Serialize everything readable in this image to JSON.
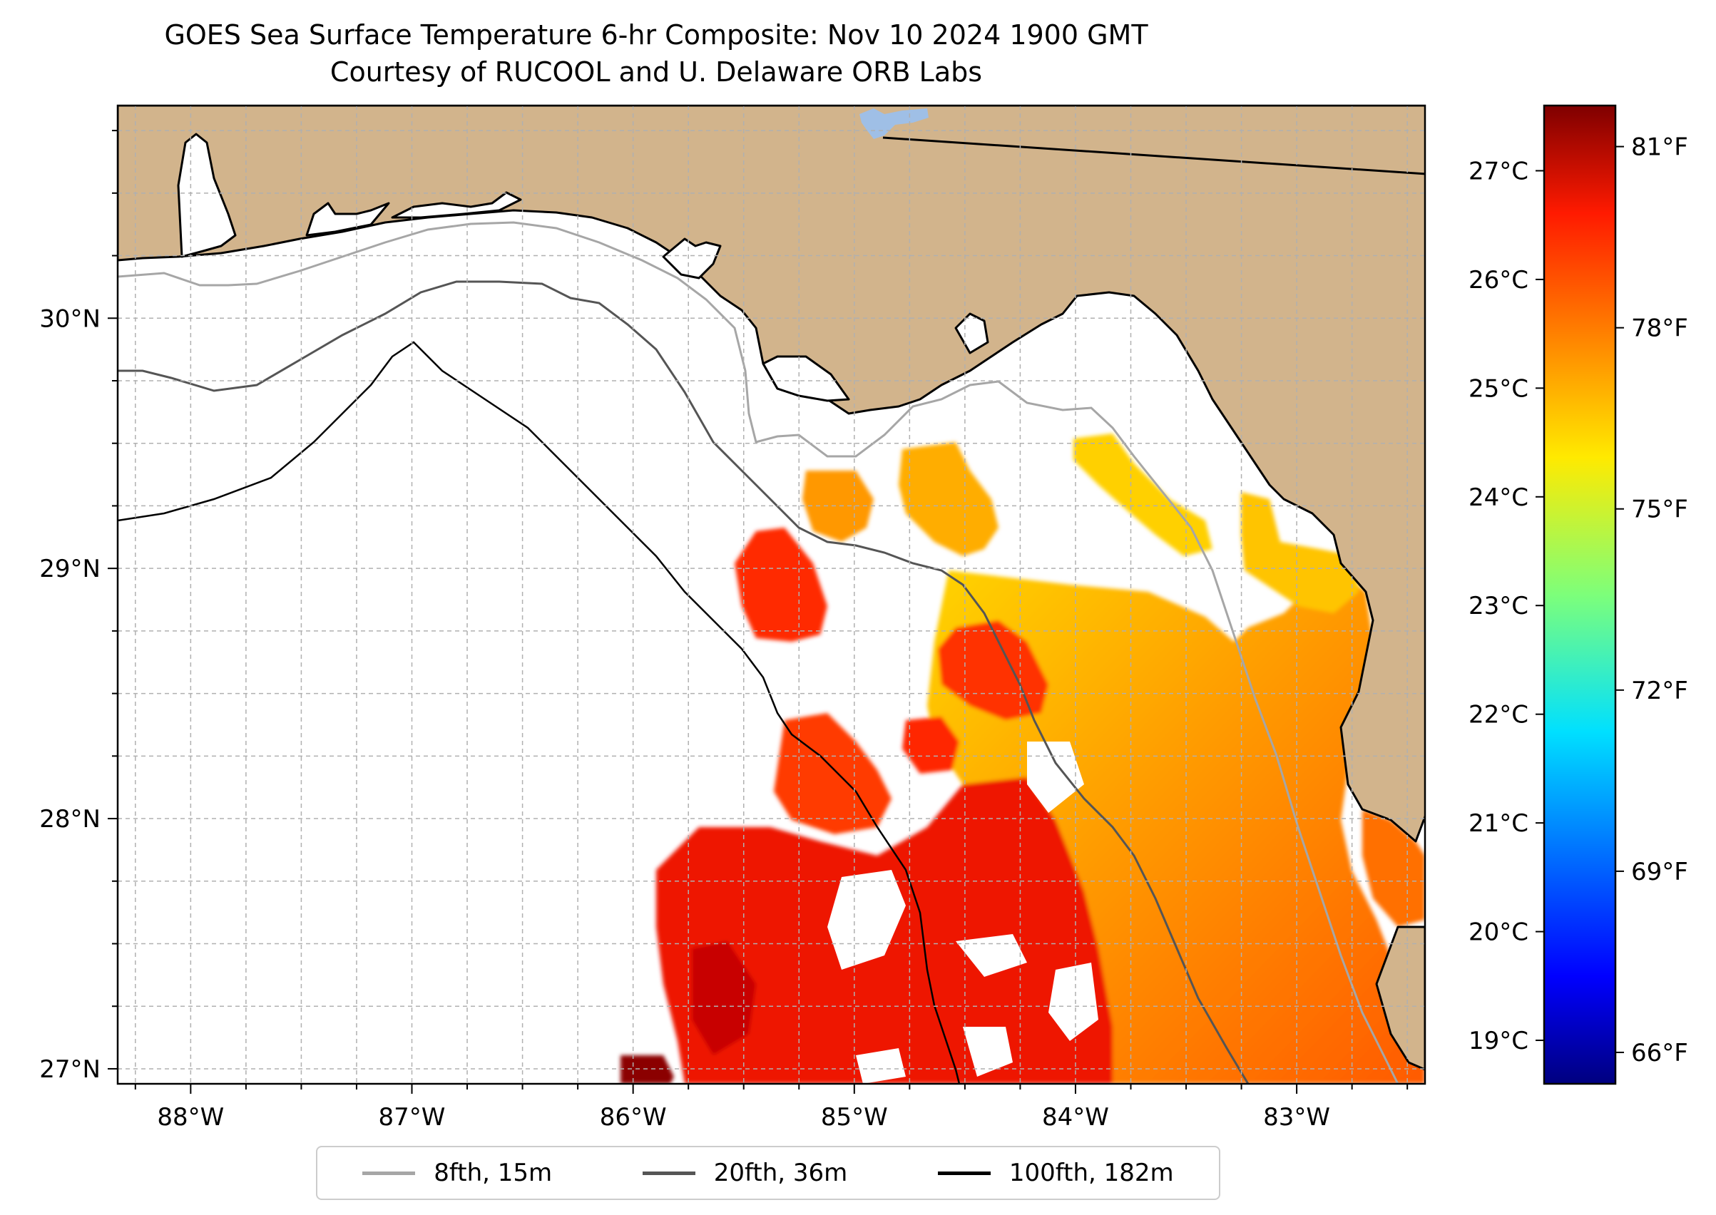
{
  "title": "GOES Sea Surface Temperature 6-hr Composite: Nov 10 2024 1900 GMT",
  "subtitle": "Courtesy of RUCOOL and U. Delaware ORB Labs",
  "map": {
    "lon_range": [
      -88.33,
      -82.42
    ],
    "lat_range": [
      26.94,
      30.85
    ],
    "lon_ticks": [
      {
        "value": -88,
        "label": "88°W"
      },
      {
        "value": -87,
        "label": "87°W"
      },
      {
        "value": -86,
        "label": "86°W"
      },
      {
        "value": -85,
        "label": "85°W"
      },
      {
        "value": -84,
        "label": "84°W"
      },
      {
        "value": -83,
        "label": "83°W"
      }
    ],
    "lat_ticks": [
      {
        "value": 30,
        "label": "30°N"
      },
      {
        "value": 29,
        "label": "29°N"
      },
      {
        "value": 28,
        "label": "28°N"
      },
      {
        "value": 27,
        "label": "27°N"
      }
    ],
    "land_color": "#d2b48c",
    "ocean_color": "#ffffff",
    "lake_color": "#9fbfe6"
  },
  "colorbar": {
    "colormap": "jet",
    "min_celsius": 18.6,
    "max_celsius": 27.6,
    "celsius_ticks": [
      {
        "value": 27,
        "label": "27°C"
      },
      {
        "value": 26,
        "label": "26°C"
      },
      {
        "value": 25,
        "label": "25°C"
      },
      {
        "value": 24,
        "label": "24°C"
      },
      {
        "value": 23,
        "label": "23°C"
      },
      {
        "value": 22,
        "label": "22°C"
      },
      {
        "value": 21,
        "label": "21°C"
      },
      {
        "value": 20,
        "label": "20°C"
      },
      {
        "value": 19,
        "label": "19°C"
      }
    ],
    "fahrenheit_ticks": [
      {
        "value": 81,
        "label": "81°F"
      },
      {
        "value": 78,
        "label": "78°F"
      },
      {
        "value": 75,
        "label": "75°F"
      },
      {
        "value": 72,
        "label": "72°F"
      },
      {
        "value": 69,
        "label": "69°F"
      },
      {
        "value": 66,
        "label": "66°F"
      }
    ]
  },
  "legend": {
    "items": [
      {
        "label": "8fth, 15m",
        "color": "#a6a6a6"
      },
      {
        "label": "20fth, 36m",
        "color": "#555555"
      },
      {
        "label": "100fth, 182m",
        "color": "#000000"
      }
    ]
  }
}
